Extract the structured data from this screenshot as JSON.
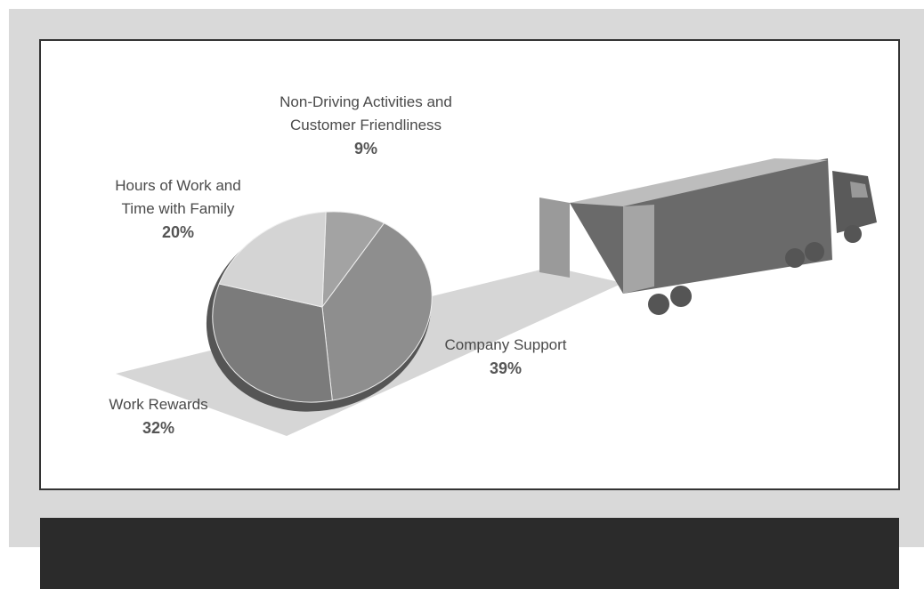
{
  "chart_data": {
    "type": "pie",
    "categories": [
      "Non-Driving Activities and Customer Friendliness",
      "Company Support",
      "Work Rewards",
      "Hours of Work and Time with Family"
    ],
    "values": [
      9,
      39,
      32,
      20
    ],
    "value_labels": [
      "9%",
      "39%",
      "32%",
      "20%"
    ],
    "colors": [
      "#a3a3a3",
      "#8e8e8e",
      "#7b7b7b",
      "#d4d4d4"
    ]
  }
}
